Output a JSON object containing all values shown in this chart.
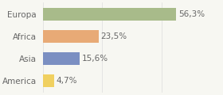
{
  "categories": [
    "Europa",
    "Africa",
    "Asia",
    "America"
  ],
  "values": [
    56.3,
    23.5,
    15.6,
    4.7
  ],
  "labels": [
    "56,3%",
    "23,5%",
    "15,6%",
    "4,7%"
  ],
  "bar_colors": [
    "#a8bb8a",
    "#e8aa76",
    "#7b8fc2",
    "#f0d060"
  ],
  "background_color": "#f7f7f2",
  "xlim": [
    0,
    75
  ],
  "bar_height": 0.55,
  "label_fontsize": 7.5,
  "cat_fontsize": 7.5,
  "label_color": "#666666",
  "grid_color": "#dddddd",
  "grid_xticks": [
    0,
    25,
    50,
    75
  ]
}
